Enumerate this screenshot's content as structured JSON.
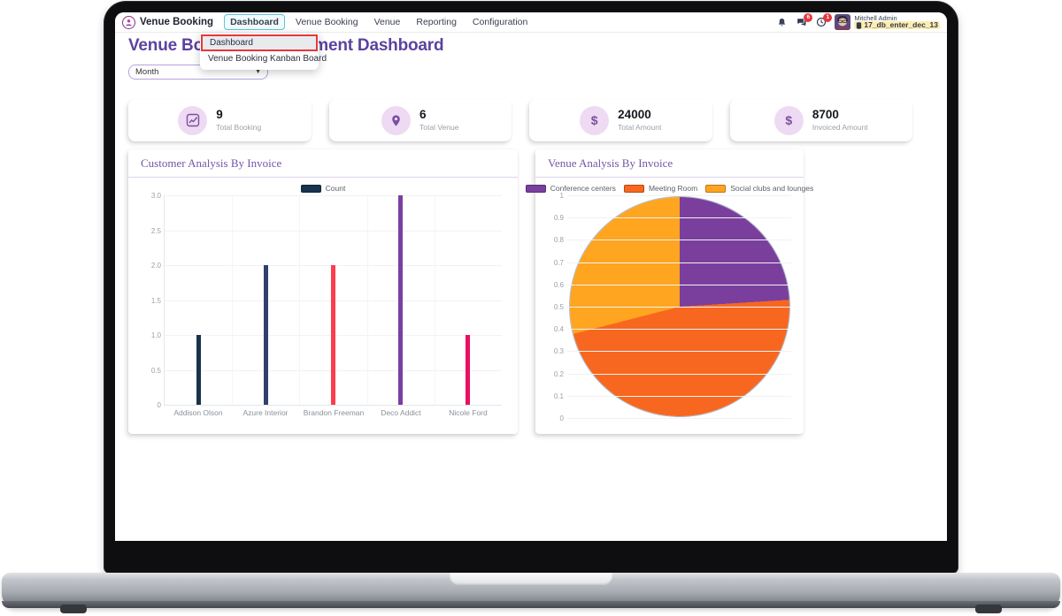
{
  "navbar": {
    "brand": "Venue Booking",
    "items": [
      {
        "label": "Dashboard",
        "active": true
      },
      {
        "label": "Venue Booking",
        "active": false
      },
      {
        "label": "Venue",
        "active": false
      },
      {
        "label": "Reporting",
        "active": false
      },
      {
        "label": "Configuration",
        "active": false
      }
    ],
    "systray": {
      "messages_badge": "6",
      "activities_badge": "1",
      "user_name": "Mitchell Admin",
      "database": "17_db_enter_dec_13"
    }
  },
  "dropdown": {
    "items": [
      {
        "label": "Dashboard",
        "highlighted": true
      },
      {
        "label": "Venue Booking Kanban Board",
        "highlighted": false
      }
    ],
    "highlight_color": "#e5383b"
  },
  "page": {
    "title": "Venue Booking Management Dashboard",
    "filter_value": "Month"
  },
  "stats": [
    {
      "icon": "chart-line-icon",
      "value": "9",
      "label": "Total Booking"
    },
    {
      "icon": "map-pin-icon",
      "value": "6",
      "label": "Total Venue"
    },
    {
      "icon": "dollar-icon",
      "value": "24000",
      "label": "Total Amount"
    },
    {
      "icon": "dollar-icon",
      "value": "8700",
      "label": "Invoiced Amount"
    }
  ],
  "colors": {
    "accent_purple": "#5c429f",
    "card_title_purple": "#7456a8",
    "active_tab_teal": "#62c6d4",
    "annotation_red": "#e5383b",
    "badge_red": "#e4373f",
    "stat_icon_bg": "#eedaf2",
    "stat_icon_fg": "#7b4fa0",
    "db_badge_bg": "#fdeeb0"
  },
  "chart_data": [
    {
      "type": "bar",
      "title": "Customer Analysis By Invoice",
      "legend": [
        "Count"
      ],
      "legend_color": "#17334d",
      "categories": [
        "Addison Olson",
        "Azure Interior",
        "Brandon Freeman",
        "Deco Addict",
        "Nicole Ford"
      ],
      "values": [
        1,
        2,
        2,
        3,
        1
      ],
      "bar_colors": [
        "#17334d",
        "#32406e",
        "#fb3e4c",
        "#7b3fa0",
        "#e91063"
      ],
      "ylim": [
        0,
        3
      ],
      "yticks": [
        "3.0",
        "2.5",
        "2.0",
        "1.5",
        "1.0",
        "0.5",
        "0"
      ],
      "grid": true,
      "legend_position": "top"
    },
    {
      "type": "pie",
      "title": "Venue Analysis By Invoice",
      "labels": [
        "Conference centers",
        "Meeting Room",
        "Social clubs and lounges"
      ],
      "values_percent": [
        24,
        47,
        29
      ],
      "colors": [
        "#7a3f9d",
        "#f8671f",
        "#ffa51f"
      ],
      "ylim": [
        0,
        1
      ],
      "yticks": [
        "1",
        "0.9",
        "0.8",
        "0.7",
        "0.6",
        "0.5",
        "0.4",
        "0.3",
        "0.2",
        "0.1",
        "0"
      ],
      "grid": true,
      "legend_position": "top"
    }
  ]
}
